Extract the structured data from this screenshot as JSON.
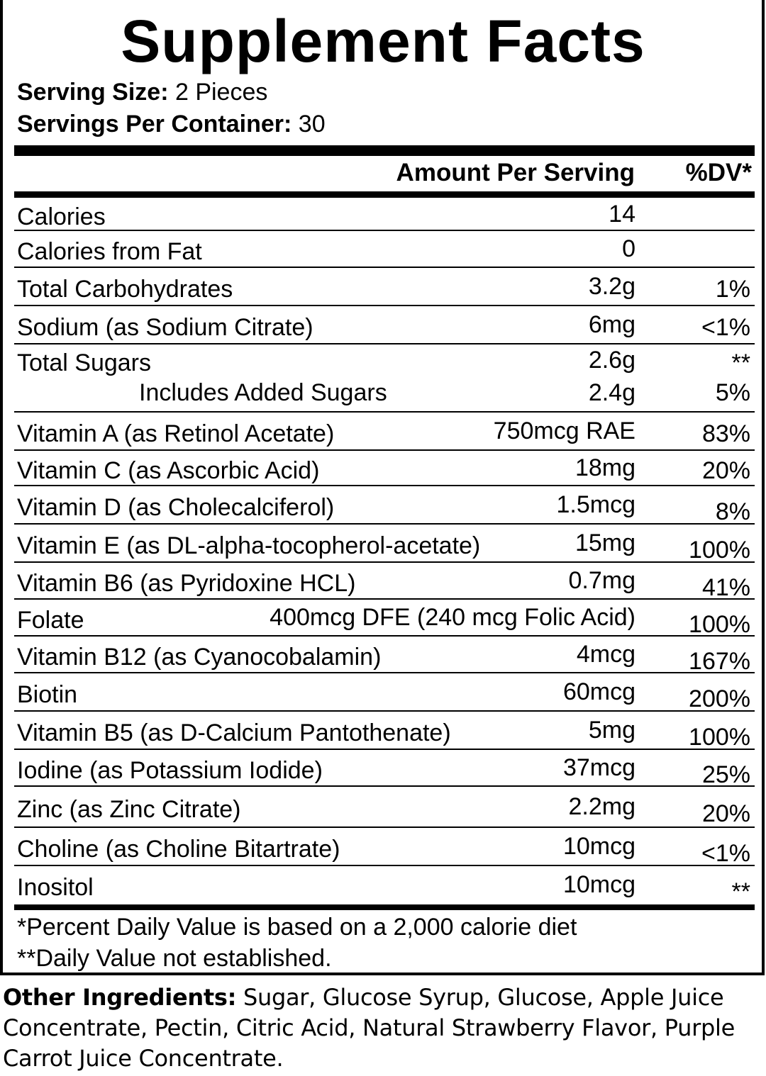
{
  "title": "Supplement Facts",
  "serving_size": {
    "label": "Serving Size:",
    "value": "2 Pieces"
  },
  "servings_per_container": {
    "label": "Servings Per Container:",
    "value": "30"
  },
  "header": {
    "amount": "Amount Per Serving",
    "dv": "%DV*"
  },
  "rows": [
    {
      "label": "Calories",
      "amount": "14",
      "dv": ""
    },
    {
      "label": "Calories from Fat",
      "amount": "0",
      "dv": ""
    },
    {
      "label": "Total Carbohydrates",
      "amount": "3.2g",
      "dv": "1%"
    },
    {
      "label": "Sodium (as Sodium Citrate)",
      "amount": "6mg",
      "dv": "<1%"
    },
    {
      "label": "Total Sugars",
      "amount": "2.6g",
      "dv": "**",
      "sub": {
        "label": "Includes Added Sugars",
        "amount": "2.4g",
        "dv": "5%"
      }
    },
    {
      "label": "Vitamin A (as Retinol Acetate)",
      "amount": "750mcg RAE",
      "dv": "83%"
    },
    {
      "label": "Vitamin C (as Ascorbic Acid)",
      "amount": "18mg",
      "dv": "20%"
    },
    {
      "label": "Vitamin D (as Cholecalciferol)",
      "amount": "1.5mcg",
      "dv": "8%"
    },
    {
      "label": "Vitamin E (as DL-alpha-tocopherol-acetate)",
      "amount": "15mg",
      "dv": "100%"
    },
    {
      "label": "Vitamin B6 (as Pyridoxine HCL)",
      "amount": "0.7mg",
      "dv": "41%"
    },
    {
      "label": "Folate",
      "amount": "400mcg DFE (240 mcg Folic Acid)",
      "dv": "100%"
    },
    {
      "label": "Vitamin B12 (as Cyanocobalamin)",
      "amount": "4mcg",
      "dv": "167%"
    },
    {
      "label": "Biotin",
      "amount": "60mcg",
      "dv": "200%"
    },
    {
      "label": "Vitamin B5 (as D-Calcium Pantothenate)",
      "amount": "5mg",
      "dv": "100%"
    },
    {
      "label": "Iodine (as Potassium Iodide)",
      "amount": "37mcg",
      "dv": "25%"
    },
    {
      "label": "Zinc (as Zinc Citrate)",
      "amount": "2.2mg",
      "dv": "20%"
    },
    {
      "label": "Choline (as Choline Bitartrate)",
      "amount": "10mcg",
      "dv": "<1%"
    },
    {
      "label": "Inositol",
      "amount": "10mcg",
      "dv": "**"
    }
  ],
  "footnotes": [
    "*Percent Daily Value is based on a 2,000 calorie diet",
    "**Daily Value not established."
  ],
  "other_ingredients": {
    "label": "Other Ingredients:",
    "text": "Sugar, Glucose Syrup, Glucose, Apple Juice Concentrate, Pectin, Citric Acid, Natural Strawberry Flavor, Purple Carrot Juice Concentrate."
  }
}
